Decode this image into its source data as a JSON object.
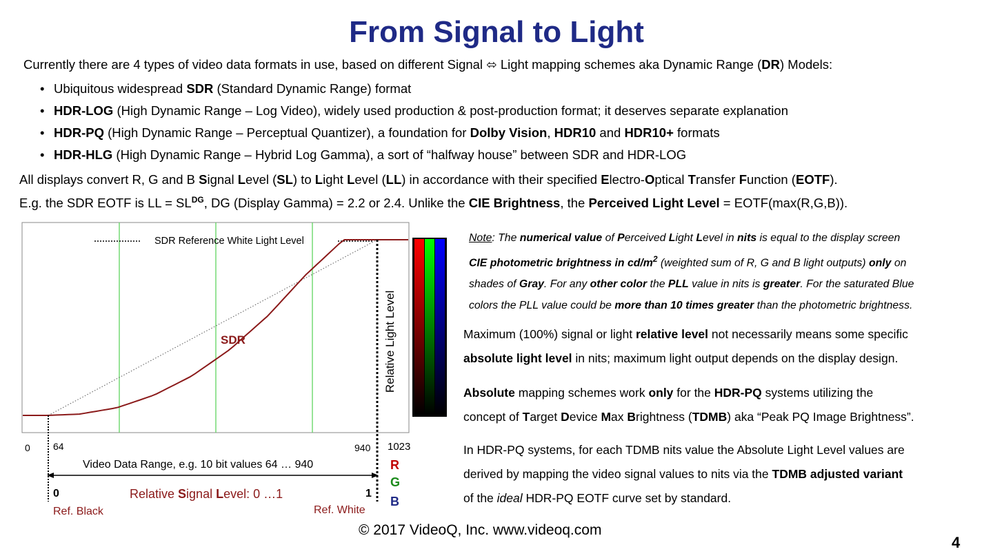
{
  "title": "From Signal to Light",
  "intro": {
    "before": "Currently there are 4 types of video data formats in use, based on different Signal ",
    "arrow": "⬄",
    "middle": " Light mapping schemes aka Dynamic Range (",
    "bold": "DR",
    "after": ") Models:"
  },
  "bullets": [
    {
      "bullet": "•",
      "pre": "Ubiquitous widespread ",
      "bold1": "SDR",
      "text1": " (Standard Dynamic Range) format",
      "bold2": "",
      "text2": "",
      "bold3": "",
      "text3": "",
      "bold4": "",
      "text4": ""
    },
    {
      "bullet": "•",
      "pre": "",
      "bold1": "HDR-LOG",
      "text1": " (High Dynamic Range – Log Video), widely used production & post-production format; it deserves separate explanation",
      "bold2": "",
      "text2": "",
      "bold3": "",
      "text3": "",
      "bold4": "",
      "text4": ""
    },
    {
      "bullet": "•",
      "pre": "",
      "bold1": "HDR-PQ",
      "text1": " (High Dynamic Range – Perceptual Quantizer), a foundation for ",
      "bold2": "Dolby Vision",
      "text2": ", ",
      "bold3": "HDR10",
      "text3": " and ",
      "bold4": "HDR10+",
      "text4": " formats"
    },
    {
      "bullet": "•",
      "pre": "",
      "bold1": "HDR-HLG",
      "text1": " (High Dynamic Range – Hybrid Log Gamma), a sort of “halfway house” between SDR and HDR-LOG",
      "bold2": "",
      "text2": "",
      "bold3": "",
      "text3": "",
      "bold4": "",
      "text4": ""
    }
  ],
  "para2": {
    "t1": "All displays convert R, G and B ",
    "b1": "S",
    "t2": "ignal ",
    "b2": "L",
    "t3": "evel (",
    "b3": "SL",
    "t4": ") to ",
    "b4": "L",
    "t5": "ight ",
    "b5": "L",
    "t6": "evel (",
    "b6": "LL",
    "t7": ") in accordance with their specified ",
    "b7": "E",
    "t8": "lectro-",
    "b8": "O",
    "t9": "ptical ",
    "b9": "T",
    "t10": "ransfer ",
    "b10": "F",
    "t11": "unction (",
    "b11": "EOTF",
    "t12": ")."
  },
  "para3": {
    "t1": "E.g. the SDR EOTF is LL = SL",
    "sup": "DG",
    "t2": ", DG (Display Gamma) = 2.2 or 2.4. Unlike the ",
    "b1": "CIE Brightness",
    "t3": ", the ",
    "b2": "Perceived Light Level",
    "t4": " = EOTF(max(R,G,B))."
  },
  "note": {
    "l1_u": "Note",
    "l1_a": ": The ",
    "l1_b": "numerical value",
    "l1_c": " of ",
    "l1_d": "P",
    "l1_e": "erceived ",
    "l1_f": "L",
    "l1_g": "ight ",
    "l1_h": "L",
    "l1_i": "evel in ",
    "l1_j": "nits",
    "l1_k": " is equal to the display screen",
    "l2_b": "CIE photometric  brightness in cd/m",
    "l2_sup": "2",
    "l2_c": " (weighted sum of R, G and B light outputs) ",
    "l2_d": "only",
    "l2_e": " on",
    "l3_a": "shades of ",
    "l3_b": "Gray",
    "l3_c": ". For any ",
    "l3_d": "other color",
    "l3_e": " the ",
    "l3_f": "PLL",
    "l3_g": " value in nits is ",
    "l3_h": "greater",
    "l3_i": ". For the saturated Blue",
    "l4_a": "colors the PLL value could be ",
    "l4_b": "more than 10 times greater",
    "l4_c": " than the photometric brightness."
  },
  "para_max": {
    "l1_a": "Maximum (100%) signal or light ",
    "l1_b": "relative level",
    "l1_c": " not necessarily means some specific",
    "l2_b": "absolute light level",
    "l2_c": " in nits; maximum light output depends on the display design."
  },
  "para_abs": {
    "l1_b": "Absolute",
    "l1_a": " mapping schemes work ",
    "l1_c": "only",
    "l1_d": " for the ",
    "l1_e": "HDR-PQ",
    "l1_f": " systems utilizing the",
    "l2_a": "concept of ",
    "l2_b1": "T",
    "l2_c1": "arget ",
    "l2_b2": "D",
    "l2_c2": "evice ",
    "l2_b3": "M",
    "l2_c3": "ax ",
    "l2_b4": "B",
    "l2_c4": "rightness (",
    "l2_b5": "TDMB",
    "l2_c5": ") aka “Peak PQ Image Brightness”."
  },
  "para_pq": {
    "l1": "In HDR-PQ systems, for each TDMB nits value the Absolute Light Level values are",
    "l2_a": "derived by mapping the video signal values to nits via the ",
    "l2_b": "TDMB adjusted variant",
    "l3_a": "of the ",
    "l3_i": "ideal",
    "l3_b": " HDR-PQ EOTF curve set by standard."
  },
  "chart": {
    "ref_white_label": "SDR Reference White Light Level",
    "y_axis_label": "Relative Light Level",
    "curve_label": "SDR",
    "tick_0": "0",
    "tick_64": "64",
    "tick_940": "940",
    "tick_1023": "1023",
    "range_label_bold": "Video Data Range",
    "range_label_rest": ", e.g. 10 bit values 64 … 940",
    "rel_zero": "0",
    "rel_one": "1",
    "rel_label_a": "Relative ",
    "rel_label_b": "S",
    "rel_label_c": "ignal ",
    "rel_label_d": "L",
    "rel_label_e": "evel: 0 …1",
    "ref_black": "Ref. Black",
    "ref_white": "Ref. White",
    "r": "R",
    "g": "G",
    "b": "B",
    "colors": {
      "curve": "#8b1a1a",
      "grid": "#5fd45f",
      "r": "#c00000",
      "g": "#1a8a1a",
      "b": "#1f2a86",
      "title": "#1f2a86"
    }
  },
  "chart_data": {
    "type": "line",
    "x": [
      64,
      150,
      250,
      350,
      450,
      550,
      650,
      750,
      850,
      940
    ],
    "series": [
      {
        "name": "SDR",
        "values": [
          0.0,
          0.0067,
          0.043,
          0.116,
          0.226,
          0.376,
          0.567,
          0.8,
          1.0,
          1.0
        ]
      }
    ],
    "ylabel": "Relative Light Level",
    "xlim": [
      0,
      1023
    ],
    "ylim": [
      0,
      1
    ]
  },
  "footer": "© 2017 VideoQ, Inc. www.videoq.com",
  "page_number": "4"
}
